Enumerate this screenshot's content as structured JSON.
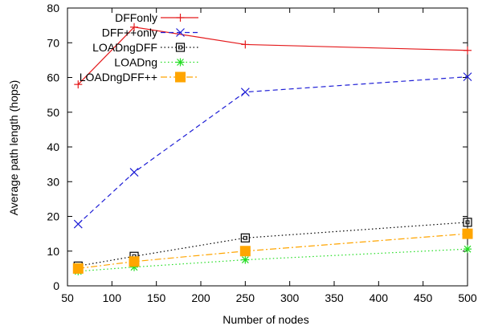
{
  "chart_data": {
    "type": "line",
    "xlabel": "Number of nodes",
    "ylabel": "Average path length (hops)",
    "xlim": [
      50,
      500
    ],
    "ylim": [
      0,
      80
    ],
    "xticks": [
      "50",
      "100",
      "150",
      "200",
      "250",
      "300",
      "350",
      "400",
      "450",
      "500"
    ],
    "yticks": [
      "0",
      "10",
      "20",
      "30",
      "40",
      "50",
      "60",
      "70",
      "80"
    ],
    "legend_position": "top-right",
    "grid": false,
    "series": [
      {
        "name": "DFFonly",
        "color": "#e41a1c",
        "dash": "solid",
        "marker": "plus",
        "x": [
          62,
          125,
          250,
          500
        ],
        "y": [
          58,
          74.5,
          69.5,
          67.8
        ]
      },
      {
        "name": "DFF++only",
        "color": "#1f1fd6",
        "dash": "dashed",
        "marker": "cross",
        "x": [
          62,
          125,
          250,
          500
        ],
        "y": [
          17.8,
          32.7,
          55.8,
          60.2
        ]
      },
      {
        "name": "LOADngDFF",
        "color": "#000000",
        "dash": "dotted",
        "marker": "open-square",
        "x": [
          62,
          125,
          250,
          500
        ],
        "y": [
          5.7,
          8.5,
          13.8,
          18.3
        ]
      },
      {
        "name": "LOADng",
        "color": "#22dd22",
        "dash": "dotted",
        "marker": "star",
        "x": [
          62,
          125,
          250,
          500
        ],
        "y": [
          4.2,
          5.4,
          7.5,
          10.6
        ]
      },
      {
        "name": "LOADngDFF++",
        "color": "#ffa500",
        "dash": "dashdot",
        "marker": "filled-square",
        "x": [
          62,
          125,
          250,
          500
        ],
        "y": [
          5.0,
          7.0,
          10.0,
          15.0
        ]
      }
    ]
  }
}
